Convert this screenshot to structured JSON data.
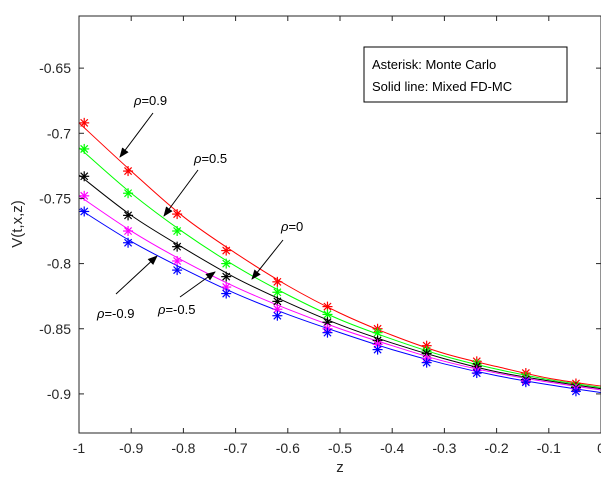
{
  "chart_data": {
    "type": "line",
    "xlabel": "z",
    "ylabel": "V(t,x,z)",
    "xlim": [
      -1,
      0
    ],
    "ylim": [
      -0.93,
      -0.61
    ],
    "xticks": [
      -1,
      -0.9,
      -0.8,
      -0.7,
      -0.6,
      -0.5,
      -0.4,
      -0.3,
      -0.2,
      -0.1,
      0
    ],
    "xtick_labels": [
      "-1",
      "-0.9",
      "-0.8",
      "-0.7",
      "-0.6",
      "-0.5",
      "-0.4",
      "-0.3",
      "-0.2",
      "-0.1",
      "0"
    ],
    "yticks": [
      -0.9,
      -0.85,
      -0.8,
      -0.75,
      -0.7,
      -0.65
    ],
    "ytick_labels": [
      "-0.9",
      "-0.85",
      "-0.8",
      "-0.75",
      "-0.7",
      "-0.65"
    ],
    "grid": false,
    "legend": {
      "placement": "top-right",
      "lines": [
        "Asterisk: Monte Carlo",
        "Solid line: Mixed FD-MC"
      ]
    },
    "x_monte_carlo": [
      -0.99,
      -0.906,
      -0.812,
      -0.718,
      -0.62,
      -0.524,
      -0.428,
      -0.334,
      -0.238,
      -0.144,
      -0.048
    ],
    "series": [
      {
        "rho": "0.9",
        "color": "#ff0000",
        "line_x": [
          -1,
          -0.9,
          -0.8,
          -0.7,
          -0.6,
          -0.5,
          -0.4,
          -0.3,
          -0.2,
          -0.1,
          0
        ],
        "line_y": [
          -0.692,
          -0.729,
          -0.764,
          -0.792,
          -0.817,
          -0.838,
          -0.855,
          -0.869,
          -0.879,
          -0.888,
          -0.894
        ],
        "mc_y": [
          -0.692,
          -0.729,
          -0.762,
          -0.79,
          -0.814,
          -0.833,
          -0.85,
          -0.863,
          -0.875,
          -0.884,
          -0.892
        ]
      },
      {
        "rho": "0.5",
        "color": "#00ff00",
        "line_x": [
          -1,
          -0.9,
          -0.8,
          -0.7,
          -0.6,
          -0.5,
          -0.4,
          -0.3,
          -0.2,
          -0.1,
          0
        ],
        "line_y": [
          -0.711,
          -0.746,
          -0.776,
          -0.802,
          -0.824,
          -0.843,
          -0.858,
          -0.871,
          -0.881,
          -0.889,
          -0.895
        ],
        "mc_y": [
          -0.712,
          -0.746,
          -0.775,
          -0.8,
          -0.822,
          -0.839,
          -0.853,
          -0.867,
          -0.877,
          -0.887,
          -0.894
        ]
      },
      {
        "rho": "0",
        "color": "#000000",
        "line_x": [
          -1,
          -0.9,
          -0.8,
          -0.7,
          -0.6,
          -0.5,
          -0.4,
          -0.3,
          -0.2,
          -0.1,
          0
        ],
        "line_y": [
          -0.732,
          -0.763,
          -0.788,
          -0.811,
          -0.83,
          -0.847,
          -0.861,
          -0.873,
          -0.883,
          -0.89,
          -0.896
        ],
        "mc_y": [
          -0.733,
          -0.763,
          -0.787,
          -0.81,
          -0.829,
          -0.845,
          -0.859,
          -0.869,
          -0.879,
          -0.889,
          -0.895
        ]
      },
      {
        "rho": "-0.5",
        "color": "#ff00ff",
        "line_x": [
          -1,
          -0.9,
          -0.8,
          -0.7,
          -0.6,
          -0.5,
          -0.4,
          -0.3,
          -0.2,
          -0.1,
          0
        ],
        "line_y": [
          -0.748,
          -0.775,
          -0.798,
          -0.818,
          -0.835,
          -0.85,
          -0.863,
          -0.875,
          -0.884,
          -0.891,
          -0.897
        ],
        "mc_y": [
          -0.748,
          -0.775,
          -0.798,
          -0.818,
          -0.835,
          -0.85,
          -0.862,
          -0.873,
          -0.882,
          -0.89,
          -0.896
        ]
      },
      {
        "rho": "-0.9",
        "color": "#0000ff",
        "line_x": [
          -1,
          -0.9,
          -0.8,
          -0.7,
          -0.6,
          -0.5,
          -0.4,
          -0.3,
          -0.2,
          -0.1,
          0
        ],
        "line_y": [
          -0.758,
          -0.783,
          -0.804,
          -0.823,
          -0.839,
          -0.853,
          -0.866,
          -0.877,
          -0.886,
          -0.893,
          -0.899
        ],
        "mc_y": [
          -0.76,
          -0.784,
          -0.805,
          -0.823,
          -0.84,
          -0.853,
          -0.866,
          -0.876,
          -0.884,
          -0.891,
          -0.898
        ]
      }
    ],
    "annotations": [
      {
        "value": "=0.9",
        "rho_symbol": "ρ"
      },
      {
        "value": "=0.5",
        "rho_symbol": "ρ"
      },
      {
        "value": "=0",
        "rho_symbol": "ρ"
      },
      {
        "value": "=-0.9",
        "rho_symbol": "ρ"
      },
      {
        "value": "=-0.5",
        "rho_symbol": "ρ"
      }
    ]
  }
}
